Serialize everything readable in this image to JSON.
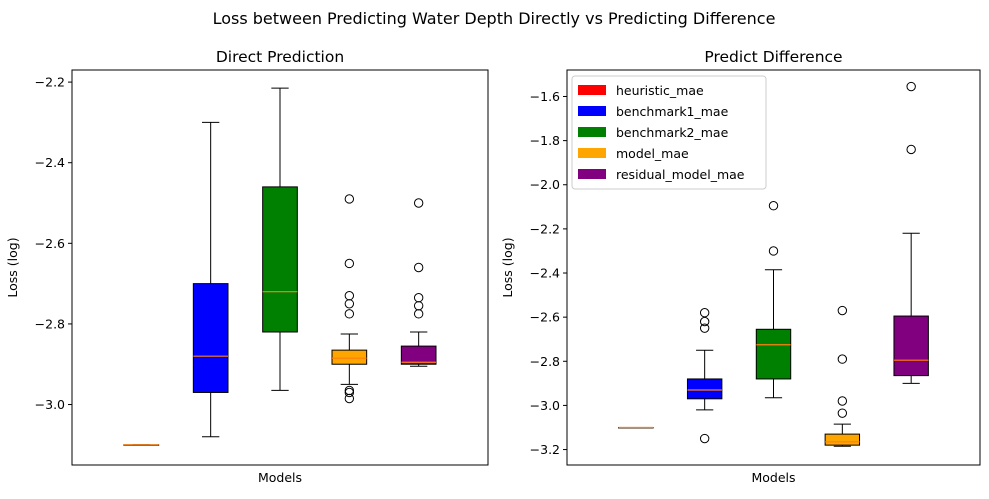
{
  "figure": {
    "suptitle": "Loss between Predicting Water Depth Directly vs Predicting Difference"
  },
  "chart_data": [
    {
      "type": "box",
      "title": "Direct Prediction",
      "xlabel": "Models",
      "ylabel": "Loss (log)",
      "ylim": [
        -3.15,
        -2.17
      ],
      "yticks": [
        -3.0,
        -2.8,
        -2.6,
        -2.4,
        -2.2
      ],
      "ytick_labels": [
        "−3.0",
        "−2.8",
        "−2.6",
        "−2.4",
        "−2.2"
      ],
      "legend": null,
      "series": [
        {
          "name": "heuristic_mae",
          "color": "#ff0000",
          "min": -3.1,
          "q1": -3.1,
          "median": -3.1,
          "q3": -3.1,
          "max": -3.1,
          "outliers": []
        },
        {
          "name": "benchmark1_mae",
          "color": "#0000ff",
          "min": -3.08,
          "q1": -2.97,
          "median": -2.88,
          "q3": -2.7,
          "max": -2.3,
          "outliers": []
        },
        {
          "name": "benchmark2_mae",
          "color": "#008000",
          "min": -2.965,
          "q1": -2.82,
          "median": -2.72,
          "q3": -2.46,
          "max": -2.215,
          "outliers": []
        },
        {
          "name": "model_mae",
          "color": "#ffa500",
          "min": -2.95,
          "q1": -2.9,
          "median": -2.885,
          "q3": -2.865,
          "max": -2.825,
          "outliers": [
            -2.49,
            -2.65,
            -2.73,
            -2.75,
            -2.775,
            -2.965,
            -2.97,
            -2.985
          ]
        },
        {
          "name": "residual_model_mae",
          "color": "#800080",
          "min": -2.905,
          "q1": -2.9,
          "median": -2.895,
          "q3": -2.855,
          "max": -2.82,
          "outliers": [
            -2.5,
            -2.66,
            -2.735,
            -2.755,
            -2.775
          ]
        }
      ]
    },
    {
      "type": "box",
      "title": "Predict Difference",
      "xlabel": "Models",
      "ylabel": "Loss (log)",
      "ylim": [
        -3.27,
        -1.48
      ],
      "yticks": [
        -3.2,
        -3.0,
        -2.8,
        -2.6,
        -2.4,
        -2.2,
        -2.0,
        -1.8,
        -1.6
      ],
      "ytick_labels": [
        "−3.2",
        "−3.0",
        "−2.8",
        "−2.6",
        "−2.4",
        "−2.2",
        "−2.0",
        "−1.8",
        "−1.6"
      ],
      "legend": "top-left",
      "series": [
        {
          "name": "heuristic_mae",
          "color": "#ff0000",
          "min": -3.1,
          "q1": -3.1,
          "median": -3.1,
          "q3": -3.1,
          "max": -3.1,
          "outliers": []
        },
        {
          "name": "benchmark1_mae",
          "color": "#0000ff",
          "min": -3.02,
          "q1": -2.97,
          "median": -2.93,
          "q3": -2.88,
          "max": -2.75,
          "outliers": [
            -2.58,
            -2.62,
            -2.65,
            -3.15
          ]
        },
        {
          "name": "benchmark2_mae",
          "color": "#008000",
          "min": -2.965,
          "q1": -2.88,
          "median": -2.725,
          "q3": -2.655,
          "max": -2.385,
          "outliers": [
            -2.095,
            -2.3
          ]
        },
        {
          "name": "model_mae",
          "color": "#ffa500",
          "min": -3.185,
          "q1": -3.18,
          "median": -3.165,
          "q3": -3.13,
          "max": -3.085,
          "outliers": [
            -2.57,
            -2.79,
            -2.98,
            -3.035
          ]
        },
        {
          "name": "residual_model_mae",
          "color": "#800080",
          "min": -2.9,
          "q1": -2.865,
          "median": -2.795,
          "q3": -2.595,
          "max": -2.22,
          "outliers": [
            -1.555,
            -1.84
          ]
        }
      ]
    }
  ]
}
